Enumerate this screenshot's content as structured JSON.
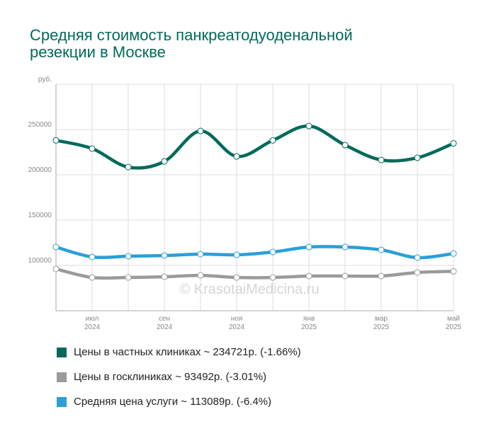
{
  "chart_data": {
    "type": "line",
    "title": "Средняя стоимость панкреатодуоденальной резекции в Москве",
    "watermark": "© KrasotaiMedicina.ru",
    "categories": [
      null,
      {
        "month": "июл",
        "year": "2024"
      },
      null,
      {
        "month": "сен",
        "year": "2024"
      },
      null,
      {
        "month": "ноя",
        "year": "2024"
      },
      null,
      {
        "month": "янв",
        "year": "2025"
      },
      null,
      {
        "month": "мар",
        "year": "2025"
      },
      null,
      {
        "month": "май",
        "year": "2025"
      }
    ],
    "ylim": [
      50000,
      300000
    ],
    "yticks": [
      100000,
      150000,
      200000,
      250000,
      {
        "value": 300000,
        "label": "руб."
      }
    ],
    "grid": true,
    "series": [
      {
        "name": "Цены в частных клиниках ~ 234721р. (-1.66%)",
        "color": "#006a5b",
        "values": [
          238000,
          229000,
          208500,
          214800,
          248400,
          220300,
          238000,
          253900,
          232800,
          216400,
          218800,
          234721
        ]
      },
      {
        "name": "Цены в госклиниках ~ 93492р. (-3.01%)",
        "color": "#9a9a9a",
        "values": [
          96100,
          86700,
          86700,
          87500,
          89000,
          86700,
          86700,
          88300,
          88300,
          88300,
          92200,
          93492
        ]
      },
      {
        "name": "Средняя цена услуги ~ 113089р. (-6.4%)",
        "color": "#2a9fd8",
        "values": [
          120300,
          109400,
          110200,
          110900,
          112500,
          111700,
          114800,
          120300,
          120300,
          117200,
          108600,
          113089
        ]
      }
    ]
  }
}
